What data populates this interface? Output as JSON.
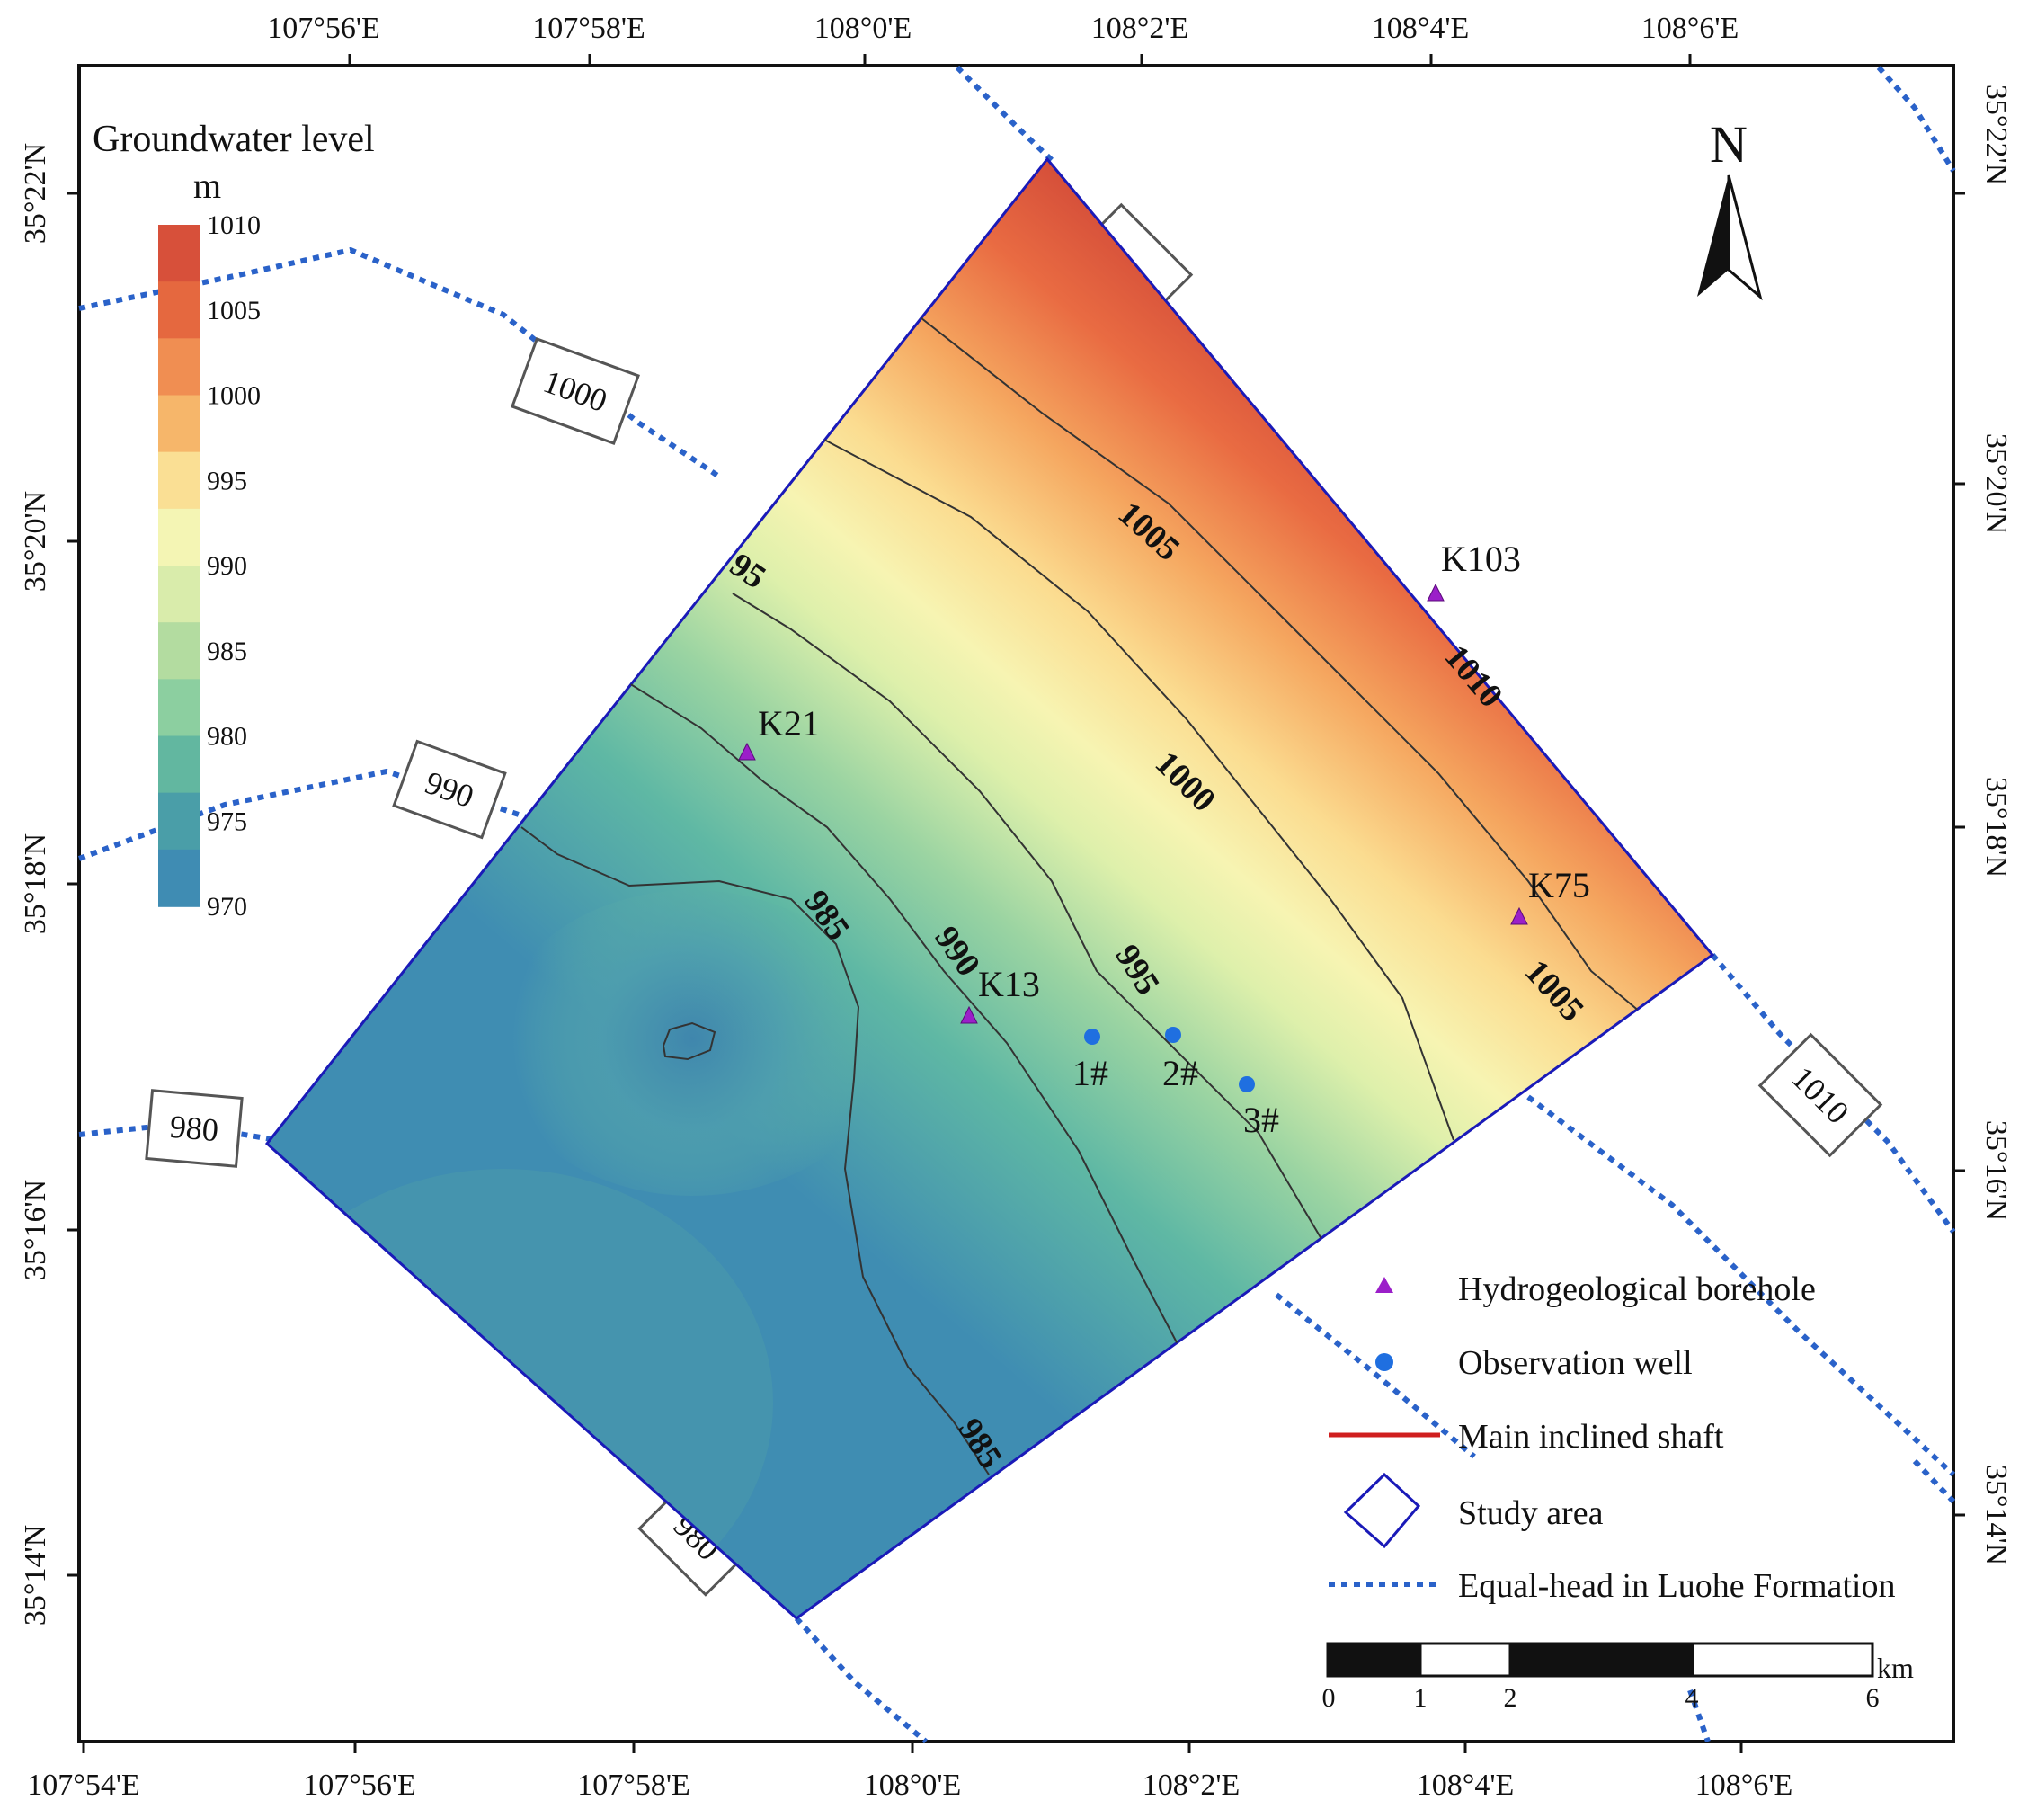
{
  "map": {
    "legend_title": "Groundwater level",
    "legend_unit": "m",
    "colorbar_ticks": [
      "1010",
      "1005",
      "1000",
      "995",
      "990",
      "985",
      "980",
      "975",
      "970"
    ],
    "colorbar_colors": [
      "#d7503a",
      "#e5683f",
      "#f08e52",
      "#f6b66a",
      "#fadf94",
      "#f4f5b4",
      "#d9ecab",
      "#b3dca0",
      "#8ccfa0",
      "#62b7a0",
      "#4a9ea8",
      "#3f8cb3"
    ],
    "north_label": "N",
    "lon_ticks_top": [
      "107°56'E",
      "107°58'E",
      "108°0'E",
      "108°2'E",
      "108°4'E",
      "108°6'E"
    ],
    "lon_ticks_bottom": [
      "107°54'E",
      "107°56'E",
      "107°58'E",
      "108°0'E",
      "108°2'E",
      "108°4'E",
      "108°6'E"
    ],
    "lat_ticks_left": [
      "35°22'N",
      "35°20'N",
      "35°18'N",
      "35°16'N",
      "35°14'N"
    ],
    "lat_ticks_right": [
      "35°22'N",
      "35°20'N",
      "35°18'N",
      "35°16'N",
      "35°14'N"
    ],
    "regional_head_labels": [
      "1000",
      "990",
      "980",
      "980",
      "1010"
    ],
    "contour_labels": [
      "1005",
      "1010",
      "1000",
      "1005",
      "95",
      "985",
      "990",
      "995",
      "985"
    ],
    "boreholes": [
      "K103",
      "K21",
      "K13",
      "K75"
    ],
    "wells": [
      "1#",
      "2#",
      "3#"
    ],
    "legend": {
      "borehole": "Hydrogeological borehole",
      "well": "Observation well",
      "shaft": "Main inclined shaft",
      "study_area": "Study area",
      "equal_head": "Equal-head in Luohe Formation"
    },
    "scale": {
      "unit": "km",
      "ticks": [
        "0",
        "1",
        "2",
        "4",
        "6"
      ]
    },
    "colors": {
      "borehole": "#9b1fc9",
      "well": "#1f6fe0",
      "shaft": "#d01f1f",
      "equal_head": "#2a62c9",
      "study_area": "#1a1ab8"
    }
  }
}
